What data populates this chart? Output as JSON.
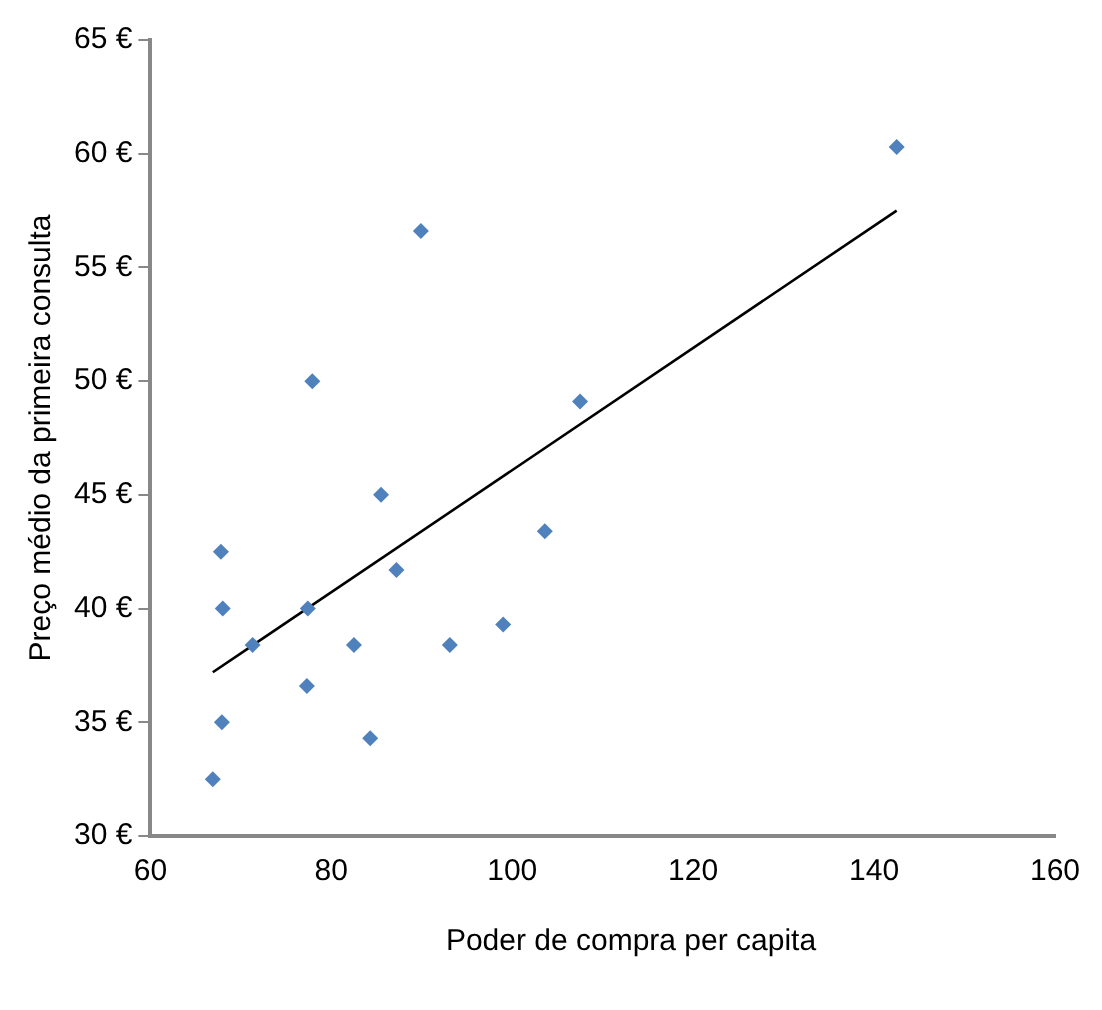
{
  "chart_data": {
    "type": "scatter",
    "xlabel": "Poder de compra per capita",
    "ylabel": "Preço médio da primeira consulta",
    "xlim": [
      60,
      160
    ],
    "xticks": [
      60,
      80,
      100,
      120,
      140,
      160
    ],
    "ylim": [
      30,
      65
    ],
    "yticks": [
      {
        "value": 30,
        "label": "30 €"
      },
      {
        "value": 35,
        "label": "35 €"
      },
      {
        "value": 40,
        "label": "40 €"
      },
      {
        "value": 45,
        "label": "45 €"
      },
      {
        "value": 50,
        "label": "50 €"
      },
      {
        "value": 55,
        "label": "55 €"
      },
      {
        "value": 60,
        "label": "60 €"
      },
      {
        "value": 65,
        "label": "65 €"
      }
    ],
    "grid": false,
    "legend": false,
    "marker": "diamond",
    "series": [
      {
        "type": "scatter",
        "color": "#4f81bd",
        "x": [
          66.9,
          67.9,
          68.0,
          67.8,
          71.3,
          77.3,
          77.4,
          77.9,
          82.5,
          84.3,
          85.5,
          87.2,
          89.9,
          93.1,
          99.0,
          103.6,
          107.5,
          142.5
        ],
        "values": [
          32.5,
          35.0,
          40.0,
          42.5,
          38.4,
          36.6,
          40.0,
          50.0,
          38.4,
          34.3,
          45.0,
          41.7,
          56.6,
          38.4,
          39.3,
          43.4,
          49.1,
          60.3
        ]
      },
      {
        "type": "line",
        "color": "#000000",
        "marker": "none",
        "x": [
          66.9,
          142.5
        ],
        "values": [
          37.2,
          57.5
        ]
      }
    ]
  }
}
